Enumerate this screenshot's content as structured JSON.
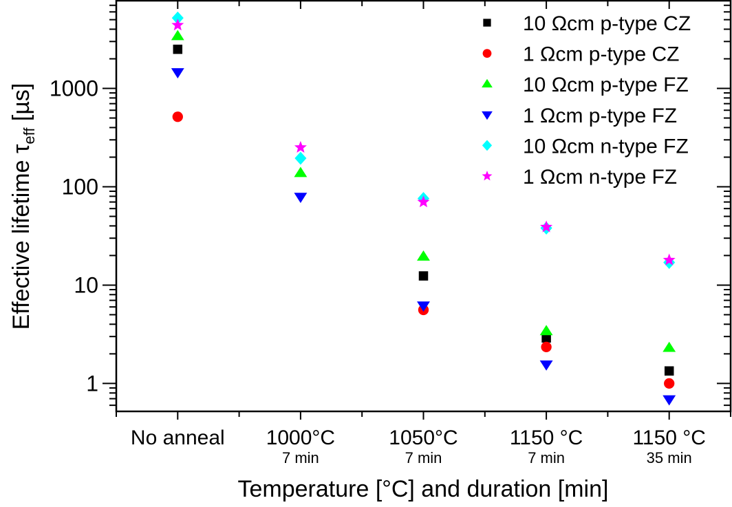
{
  "chart_data": {
    "type": "scatter",
    "title": "",
    "xlabel": "Temperature [°C] and duration [min]",
    "ylabel_main": "Effective lifetime τ",
    "ylabel_sub": "eff",
    "ylabel_unit": " [µs]",
    "yscale": "log",
    "ylim": [
      0.52,
      7800
    ],
    "yticks": [
      1,
      10,
      100,
      1000
    ],
    "ytick_labels": [
      "1",
      "10",
      "100",
      "1000"
    ],
    "categories": [
      {
        "line1": "No anneal",
        "line2": ""
      },
      {
        "line1": "1000°C",
        "line2": "7 min"
      },
      {
        "line1": "1050°C",
        "line2": "7 min"
      },
      {
        "line1": "1150 °C",
        "line2": "7 min"
      },
      {
        "line1": "1150 °C",
        "line2": "35 min"
      }
    ],
    "legend_position": "top-right",
    "grid": false,
    "series": [
      {
        "name": "10 Ωcm p-type CZ",
        "marker": "square",
        "color": "#000000",
        "values": [
          2500,
          null,
          12.4,
          2.9,
          1.34
        ]
      },
      {
        "name": "1 Ωcm p-type CZ",
        "marker": "circle",
        "color": "#ff0000",
        "values": [
          515,
          null,
          5.6,
          2.35,
          1.0
        ]
      },
      {
        "name": "10 Ωcm p-type FZ",
        "marker": "triangle-up",
        "color": "#00ff00",
        "values": [
          3400,
          138,
          19.5,
          3.4,
          2.3
        ]
      },
      {
        "name": "1 Ωcm p-type FZ",
        "marker": "triangle-down",
        "color": "#0000ff",
        "values": [
          1460,
          79,
          6.2,
          1.56,
          0.69
        ]
      },
      {
        "name": "10 Ωcm n-type FZ",
        "marker": "diamond",
        "color": "#00ffff",
        "values": [
          5200,
          195,
          76,
          38,
          17
        ]
      },
      {
        "name": "1 Ωcm n-type FZ",
        "marker": "star",
        "color": "#ff00ff",
        "values": [
          4400,
          251,
          70,
          39,
          18
        ]
      }
    ]
  }
}
